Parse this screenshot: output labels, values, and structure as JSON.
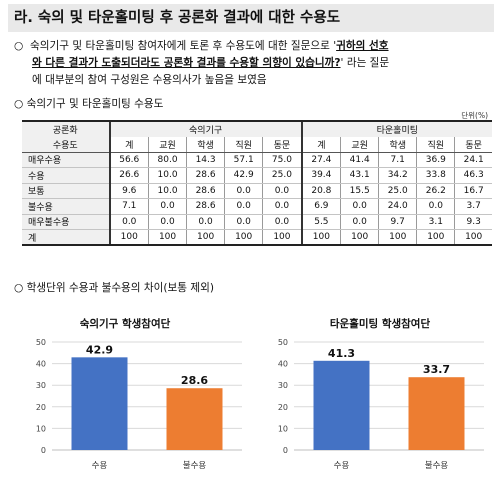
{
  "heading": "라. 숙의 및 타운홀미팅 후 공론화 결과에 대한 수용도",
  "paragraph": {
    "bullet": "○",
    "line1_plain": "숙의기구 및 타운홀미팅 참여자에게 토론 후 수용도에 대한 질문으로 '",
    "line1_quote": "귀하의 선호",
    "line2_quote": "와 다른 결과가 도출되더라도 공론화 결과를 수용할 의향이 있습니까?",
    "line2_plain": "' 라는 질문",
    "line3": "에 대부분의 참여 구성원은 수용의사가 높음을 보였음"
  },
  "subheading1": "○ 숙의기구 및 타운홀미팅 수용도",
  "unit": "단위(%)",
  "table": {
    "corner_top": "공론화",
    "corner_bottom": "수용도",
    "group1": "숙의기구",
    "group2": "타운홀미팅",
    "columns": [
      "계",
      "교원",
      "학생",
      "직원",
      "동문",
      "계",
      "교원",
      "학생",
      "직원",
      "동문"
    ],
    "rows": [
      {
        "label": "매우수용",
        "values": [
          "56.6",
          "80.0",
          "14.3",
          "57.1",
          "75.0",
          "27.4",
          "41.4",
          "7.1",
          "36.9",
          "24.1"
        ]
      },
      {
        "label": "수용",
        "values": [
          "26.6",
          "10.0",
          "28.6",
          "42.9",
          "25.0",
          "39.4",
          "43.1",
          "34.2",
          "33.8",
          "46.3"
        ]
      },
      {
        "label": "보통",
        "values": [
          "9.6",
          "10.0",
          "28.6",
          "0.0",
          "0.0",
          "20.8",
          "15.5",
          "25.0",
          "26.2",
          "16.7"
        ]
      },
      {
        "label": "불수용",
        "values": [
          "7.1",
          "0.0",
          "28.6",
          "0.0",
          "0.0",
          "6.9",
          "0.0",
          "24.0",
          "0.0",
          "3.7"
        ]
      },
      {
        "label": "매우불수용",
        "values": [
          "0.0",
          "0.0",
          "0.0",
          "0.0",
          "0.0",
          "5.5",
          "0.0",
          "9.7",
          "3.1",
          "9.3"
        ]
      },
      {
        "label": "계",
        "values": [
          "100",
          "100",
          "100",
          "100",
          "100",
          "100",
          "100",
          "100",
          "100",
          "100"
        ]
      }
    ]
  },
  "subheading2": "○ 학생단위 수용과 불수용의 차이(보통 제외)",
  "chart_data": [
    {
      "type": "bar",
      "title": "숙의기구 학생참여단",
      "categories": [
        "수용",
        "불수용"
      ],
      "values": [
        42.9,
        28.6
      ],
      "colors": [
        "#4472c4",
        "#ed7d31"
      ],
      "ylim": [
        0,
        50
      ],
      "yticks": [
        0,
        10,
        20,
        30,
        40,
        50
      ],
      "grid": true
    },
    {
      "type": "bar",
      "title": "타운홀미팅 학생참여단",
      "categories": [
        "수용",
        "불수용"
      ],
      "values": [
        41.3,
        33.7
      ],
      "colors": [
        "#4472c4",
        "#ed7d31"
      ],
      "ylim": [
        0,
        50
      ],
      "yticks": [
        0,
        10,
        20,
        30,
        40,
        50
      ],
      "grid": true
    }
  ]
}
